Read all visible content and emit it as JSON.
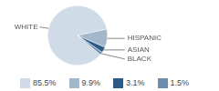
{
  "chart_data": {
    "type": "pie",
    "categories": [
      "WHITE",
      "HISPANIC",
      "ASIAN",
      "BLACK"
    ],
    "values": [
      85.5,
      9.9,
      3.1,
      1.5
    ],
    "value_labels": [
      "85.5%",
      "9.9%",
      "3.1%",
      "1.5%"
    ],
    "colors": [
      "#cfdbe6",
      "#a3b7cb",
      "#2e5b85",
      "#6d8daf"
    ],
    "legend": "bottom"
  }
}
